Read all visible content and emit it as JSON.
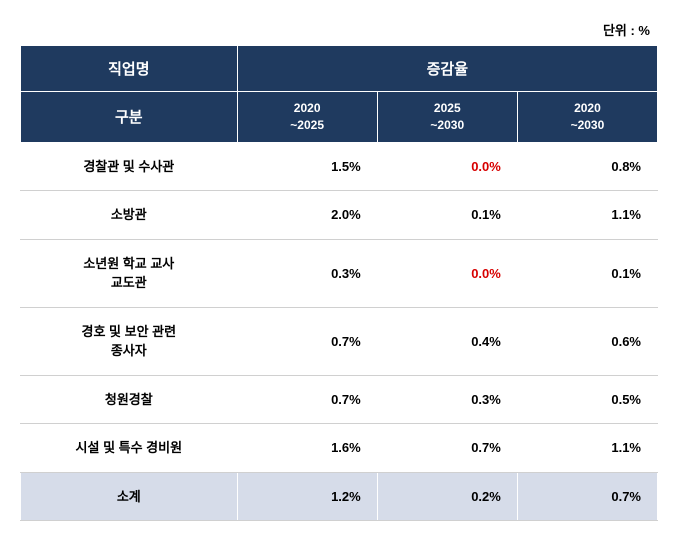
{
  "unit_label": "단위 : %",
  "headers": {
    "occupation": "직업명",
    "rate": "증감율",
    "category": "구분",
    "periods": [
      "2020\n~2025",
      "2025\n~2030",
      "2020\n~2030"
    ]
  },
  "colors": {
    "header_bg": "#1f3a5f",
    "header_text": "#ffffff",
    "subtotal_bg": "#d6dce9",
    "red_value": "#d70000",
    "border": "#d0d0d0",
    "text": "#000000",
    "background": "#ffffff"
  },
  "rows": [
    {
      "label": "경찰관 및 수사관",
      "v1": "1.5%",
      "v2": "0.0%",
      "v2_red": true,
      "v3": "0.8%"
    },
    {
      "label": "소방관",
      "v1": "2.0%",
      "v2": "0.1%",
      "v3": "1.1%"
    },
    {
      "label": "소년원 학교 교사\n교도관",
      "v1": "0.3%",
      "v2": "0.0%",
      "v2_red": true,
      "v3": "0.1%"
    },
    {
      "label": "경호 및 보안 관련\n종사자",
      "v1": "0.7%",
      "v2": "0.4%",
      "v3": "0.6%"
    },
    {
      "label": "청원경찰",
      "v1": "0.7%",
      "v2": "0.3%",
      "v3": "0.5%"
    },
    {
      "label": "시설 및 특수 경비원",
      "v1": "1.6%",
      "v2": "0.7%",
      "v3": "1.1%"
    }
  ],
  "subtotal": {
    "label": "소계",
    "v1": "1.2%",
    "v2": "0.2%",
    "v3": "0.7%"
  },
  "table": {
    "type": "table",
    "col_widths_pct": [
      34,
      22,
      22,
      22
    ],
    "font_size_header": 15,
    "font_size_period": 12,
    "font_size_body": 13,
    "row_padding_v": 14
  }
}
